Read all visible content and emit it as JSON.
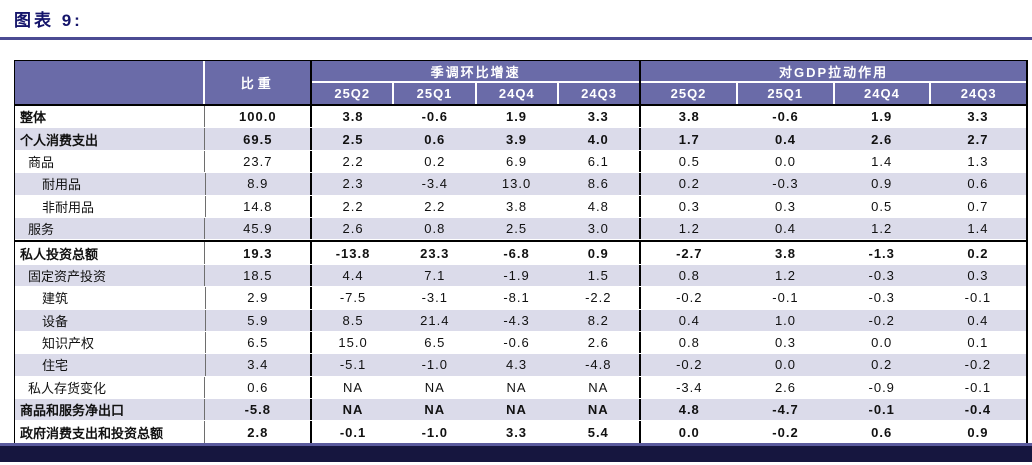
{
  "page": {
    "title": "图表 9:",
    "colors": {
      "title_text": "#15156B",
      "title_rule": "#4B4B93",
      "header_bg": "#6A6BA8",
      "header_text": "#FFFFFF",
      "stripe_row_bg": "#DBDBEA",
      "white_row_bg": "#FFFFFF",
      "section_divider": "#000000",
      "bottom_bar_bg": "#16163F",
      "bottom_bar_edge": "#5B5B9E"
    }
  },
  "table": {
    "header": {
      "weight_label": "比重",
      "groups": [
        {
          "label": "季调环比增速",
          "quarters": [
            "25Q2",
            "25Q1",
            "24Q4",
            "24Q3"
          ]
        },
        {
          "label": "对GDP拉动作用",
          "quarters": [
            "25Q2",
            "25Q1",
            "24Q4",
            "24Q3"
          ]
        }
      ]
    },
    "rows": [
      {
        "label": "整体",
        "indent": 0,
        "bold": true,
        "topBorder": false,
        "weight": "100.0",
        "qoq": [
          "3.8",
          "-0.6",
          "1.9",
          "3.3"
        ],
        "gdp": [
          "3.8",
          "-0.6",
          "1.9",
          "3.3"
        ]
      },
      {
        "label": "个人消费支出",
        "indent": 0,
        "bold": true,
        "topBorder": false,
        "weight": "69.5",
        "qoq": [
          "2.5",
          "0.6",
          "3.9",
          "4.0"
        ],
        "gdp": [
          "1.7",
          "0.4",
          "2.6",
          "2.7"
        ]
      },
      {
        "label": "商品",
        "indent": 1,
        "bold": false,
        "topBorder": false,
        "weight": "23.7",
        "qoq": [
          "2.2",
          "0.2",
          "6.9",
          "6.1"
        ],
        "gdp": [
          "0.5",
          "0.0",
          "1.4",
          "1.3"
        ]
      },
      {
        "label": "耐用品",
        "indent": 2,
        "bold": false,
        "topBorder": false,
        "weight": "8.9",
        "qoq": [
          "2.3",
          "-3.4",
          "13.0",
          "8.6"
        ],
        "gdp": [
          "0.2",
          "-0.3",
          "0.9",
          "0.6"
        ]
      },
      {
        "label": "非耐用品",
        "indent": 2,
        "bold": false,
        "topBorder": false,
        "weight": "14.8",
        "qoq": [
          "2.2",
          "2.2",
          "3.8",
          "4.8"
        ],
        "gdp": [
          "0.3",
          "0.3",
          "0.5",
          "0.7"
        ]
      },
      {
        "label": "服务",
        "indent": 1,
        "bold": false,
        "topBorder": false,
        "weight": "45.9",
        "qoq": [
          "2.6",
          "0.8",
          "2.5",
          "3.0"
        ],
        "gdp": [
          "1.2",
          "0.4",
          "1.2",
          "1.4"
        ]
      },
      {
        "label": "私人投资总额",
        "indent": 0,
        "bold": true,
        "topBorder": true,
        "weight": "19.3",
        "qoq": [
          "-13.8",
          "23.3",
          "-6.8",
          "0.9"
        ],
        "gdp": [
          "-2.7",
          "3.8",
          "-1.3",
          "0.2"
        ]
      },
      {
        "label": "固定资产投资",
        "indent": 1,
        "bold": false,
        "topBorder": false,
        "weight": "18.5",
        "qoq": [
          "4.4",
          "7.1",
          "-1.9",
          "1.5"
        ],
        "gdp": [
          "0.8",
          "1.2",
          "-0.3",
          "0.3"
        ]
      },
      {
        "label": "建筑",
        "indent": 2,
        "bold": false,
        "topBorder": false,
        "weight": "2.9",
        "qoq": [
          "-7.5",
          "-3.1",
          "-8.1",
          "-2.2"
        ],
        "gdp": [
          "-0.2",
          "-0.1",
          "-0.3",
          "-0.1"
        ]
      },
      {
        "label": "设备",
        "indent": 2,
        "bold": false,
        "topBorder": false,
        "weight": "5.9",
        "qoq": [
          "8.5",
          "21.4",
          "-4.3",
          "8.2"
        ],
        "gdp": [
          "0.4",
          "1.0",
          "-0.2",
          "0.4"
        ]
      },
      {
        "label": "知识产权",
        "indent": 2,
        "bold": false,
        "topBorder": false,
        "weight": "6.5",
        "qoq": [
          "15.0",
          "6.5",
          "-0.6",
          "2.6"
        ],
        "gdp": [
          "0.8",
          "0.3",
          "0.0",
          "0.1"
        ]
      },
      {
        "label": "住宅",
        "indent": 2,
        "bold": false,
        "topBorder": false,
        "weight": "3.4",
        "qoq": [
          "-5.1",
          "-1.0",
          "4.3",
          "-4.8"
        ],
        "gdp": [
          "-0.2",
          "0.0",
          "0.2",
          "-0.2"
        ]
      },
      {
        "label": "私人存货变化",
        "indent": 1,
        "bold": false,
        "topBorder": false,
        "weight": "0.6",
        "qoq": [
          "NA",
          "NA",
          "NA",
          "NA"
        ],
        "gdp": [
          "-3.4",
          "2.6",
          "-0.9",
          "-0.1"
        ]
      },
      {
        "label": "商品和服务净出口",
        "indent": 0,
        "bold": true,
        "topBorder": false,
        "weight": "-5.8",
        "qoq": [
          "NA",
          "NA",
          "NA",
          "NA"
        ],
        "gdp": [
          "4.8",
          "-4.7",
          "-0.1",
          "-0.4"
        ]
      },
      {
        "label": "政府消费支出和投资总额",
        "indent": 0,
        "bold": true,
        "topBorder": false,
        "weight": "2.8",
        "qoq": [
          "-0.1",
          "-1.0",
          "3.3",
          "5.4"
        ],
        "gdp": [
          "0.0",
          "-0.2",
          "0.6",
          "0.9"
        ]
      }
    ]
  }
}
